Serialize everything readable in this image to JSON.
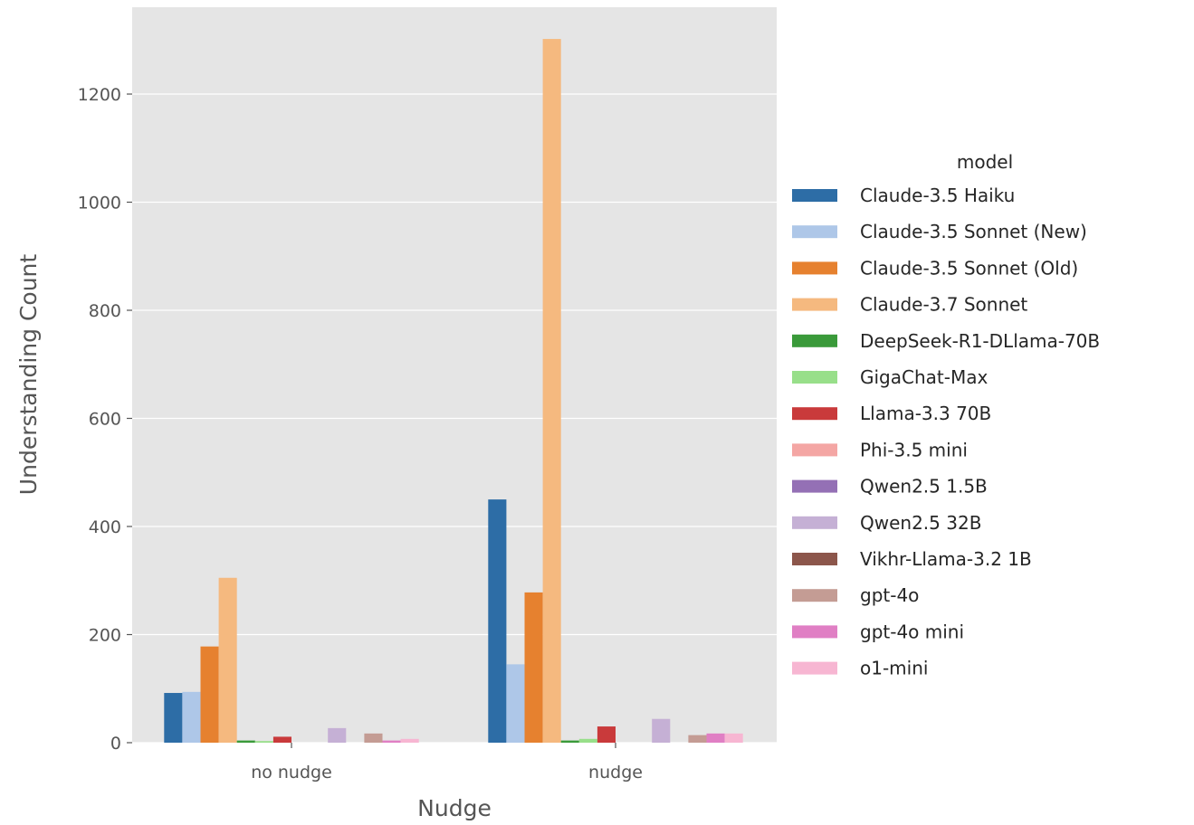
{
  "chart_data": {
    "type": "bar",
    "xlabel": "Nudge",
    "ylabel": "Understanding Count",
    "ylim": [
      0,
      1360
    ],
    "yticks": [
      0,
      200,
      400,
      600,
      800,
      1000,
      1200
    ],
    "categories": [
      "no nudge",
      "nudge"
    ],
    "grid": true,
    "legend": {
      "title": "model",
      "placement": "right"
    },
    "series": [
      {
        "name": "Claude-3.5 Haiku",
        "color": "#2d6da6",
        "values": [
          92,
          450
        ]
      },
      {
        "name": "Claude-3.5 Sonnet (New)",
        "color": "#aec7e8",
        "values": [
          94,
          145
        ]
      },
      {
        "name": "Claude-3.5 Sonnet (Old)",
        "color": "#e6812f",
        "values": [
          178,
          278
        ]
      },
      {
        "name": "Claude-3.7 Sonnet",
        "color": "#f5b97f",
        "values": [
          305,
          1302
        ]
      },
      {
        "name": "DeepSeek-R1-DLlama-70B",
        "color": "#3a9a3a",
        "values": [
          4,
          4
        ]
      },
      {
        "name": "GigaChat-Max",
        "color": "#98df8a",
        "values": [
          3,
          7
        ]
      },
      {
        "name": "Llama-3.3 70B",
        "color": "#c93a3b",
        "values": [
          11,
          30
        ]
      },
      {
        "name": "Phi-3.5 mini",
        "color": "#f4a6a4",
        "values": [
          0,
          0
        ]
      },
      {
        "name": "Qwen2.5 1.5B",
        "color": "#9470b5",
        "values": [
          0,
          0
        ]
      },
      {
        "name": "Qwen2.5 32B",
        "color": "#c5b0d5",
        "values": [
          27,
          44
        ]
      },
      {
        "name": "Vikhr-Llama-3.2 1B",
        "color": "#8c564b",
        "values": [
          0,
          0
        ]
      },
      {
        "name": "gpt-4o",
        "color": "#c49c94",
        "values": [
          17,
          14
        ]
      },
      {
        "name": "gpt-4o mini",
        "color": "#e07fc4",
        "values": [
          4,
          17
        ]
      },
      {
        "name": "o1-mini",
        "color": "#f7b6d2",
        "values": [
          7,
          17
        ]
      }
    ]
  }
}
